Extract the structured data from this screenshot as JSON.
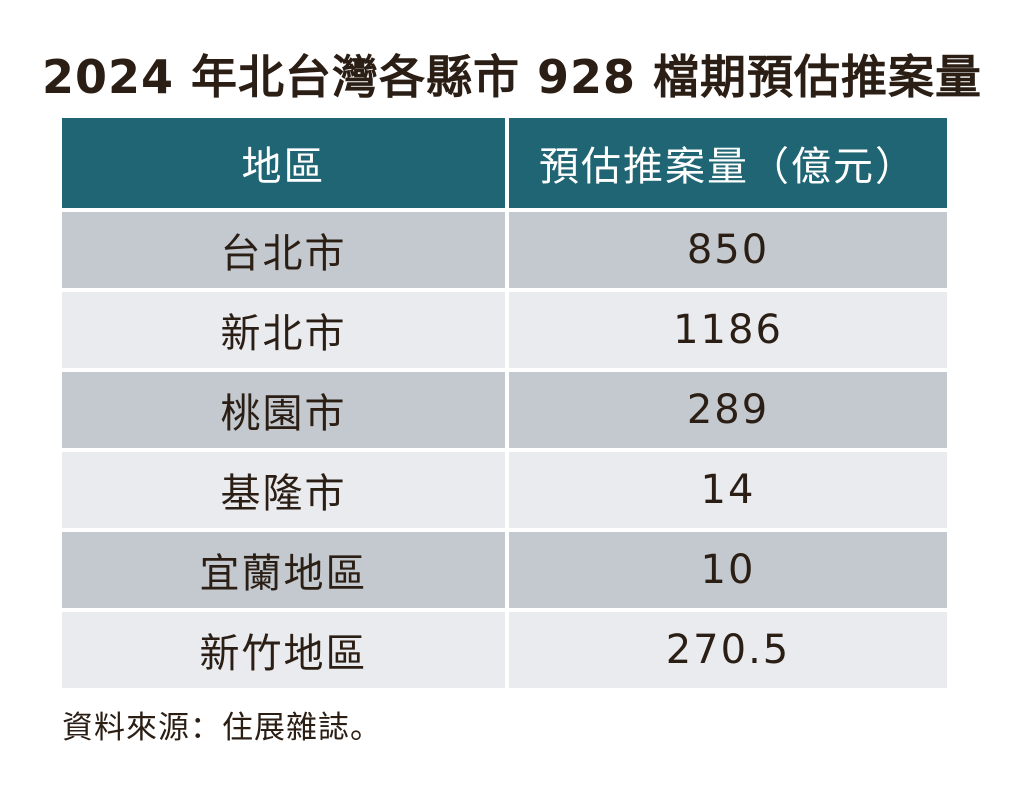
{
  "title": "2024 年北台灣各縣市 928 檔期預估推案量",
  "table": {
    "headers": [
      "地區",
      "預估推案量（億元）"
    ],
    "rows": [
      {
        "region": "台北市",
        "value": "850"
      },
      {
        "region": "新北市",
        "value": "1186"
      },
      {
        "region": "桃園市",
        "value": "289"
      },
      {
        "region": "基隆市",
        "value": "14"
      },
      {
        "region": "宜蘭地區",
        "value": "10"
      },
      {
        "region": "新竹地區",
        "value": "270.5"
      }
    ]
  },
  "source": "資料來源：住展雜誌。",
  "colors": {
    "header_bg": "#1f6573",
    "header_text": "#ffffff",
    "row_dark_bg": "#c3c9ce",
    "row_light_bg": "#e9ebef",
    "text": "#2b1e15",
    "background": "#ffffff"
  },
  "chart_data": {
    "type": "table",
    "title": "2024 年北台灣各縣市 928 檔期預估推案量",
    "columns": [
      "地區",
      "預估推案量（億元）"
    ],
    "categories": [
      "台北市",
      "新北市",
      "桃園市",
      "基隆市",
      "宜蘭地區",
      "新竹地區"
    ],
    "values": [
      850,
      1186,
      289,
      14,
      10,
      270.5
    ],
    "unit": "億元",
    "source": "資料來源：住展雜誌。",
    "layout": "two-column table, teal header, alternating gray rows"
  }
}
